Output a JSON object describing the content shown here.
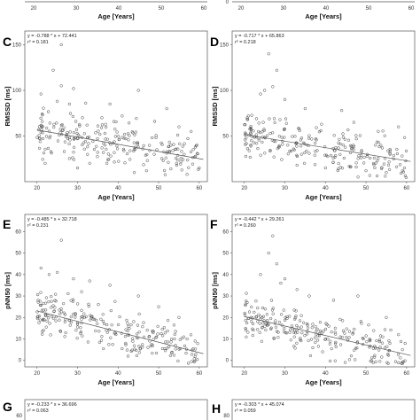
{
  "chart_data": [
    {
      "panel": "",
      "type": "scatter",
      "xlabel": "Age [Years]",
      "x_ticks": [
        20,
        30,
        40,
        50,
        60
      ],
      "xlim": [
        17,
        62
      ],
      "note": "cropped top-left panel (x-axis only visible)"
    },
    {
      "panel": "",
      "type": "scatter",
      "xlabel": "Age [Years]",
      "x_ticks": [
        20,
        30,
        40,
        50,
        60
      ],
      "y_ticks": [
        0
      ],
      "xlim": [
        17,
        62
      ],
      "note": "cropped top-right panel (x-axis only visible)"
    },
    {
      "panel": "C",
      "type": "scatter",
      "xlabel": "Age [Years]",
      "ylabel": "RMSSD [ms]",
      "equation": "y = -0.788 * x + 72.441",
      "r2": "r² = 0.181",
      "slope": -0.788,
      "intercept": 72.441,
      "xlim": [
        17,
        62
      ],
      "ylim": [
        0,
        165
      ],
      "x_ticks": [
        20,
        30,
        40,
        50,
        60
      ],
      "y_ticks": [
        50,
        100,
        150
      ],
      "seed": 11,
      "n": 230,
      "points": [
        [
          26,
          150
        ],
        [
          24,
          122
        ],
        [
          26,
          105
        ],
        [
          29,
          102
        ],
        [
          21,
          96
        ],
        [
          25,
          88
        ],
        [
          28,
          85
        ],
        [
          32,
          86
        ],
        [
          38,
          85
        ],
        [
          45,
          100
        ],
        [
          52,
          80
        ],
        [
          36,
          70
        ],
        [
          41,
          72
        ],
        [
          49,
          66
        ],
        [
          55,
          60
        ],
        [
          58,
          55
        ],
        [
          22,
          20
        ],
        [
          30,
          15
        ],
        [
          44,
          10
        ],
        [
          57,
          8
        ],
        [
          60,
          15
        ],
        [
          33,
          20
        ],
        [
          47,
          12
        ],
        [
          53,
          14
        ]
      ]
    },
    {
      "panel": "D",
      "type": "scatter",
      "xlabel": "Age [Years]",
      "ylabel": "RMSSD [ms]",
      "equation": "y = -0.717 * x + 65.863",
      "r2": "r² = 0.218",
      "slope": -0.717,
      "intercept": 65.863,
      "xlim": [
        17,
        62
      ],
      "ylim": [
        0,
        165
      ],
      "x_ticks": [
        20,
        30,
        40,
        50,
        60
      ],
      "y_ticks": [
        50,
        100,
        150
      ],
      "seed": 23,
      "n": 230,
      "points": [
        [
          26,
          140
        ],
        [
          28,
          122
        ],
        [
          27,
          104
        ],
        [
          25,
          100
        ],
        [
          24,
          96
        ],
        [
          30,
          90
        ],
        [
          35,
          80
        ],
        [
          44,
          78
        ],
        [
          47,
          65
        ],
        [
          21,
          72
        ],
        [
          53,
          55
        ],
        [
          58,
          60
        ],
        [
          40,
          15
        ],
        [
          50,
          12
        ],
        [
          55,
          10
        ],
        [
          59,
          12
        ],
        [
          33,
          18
        ]
      ]
    },
    {
      "panel": "E",
      "type": "scatter",
      "xlabel": "Age [Years]",
      "ylabel": "pNN50 [ms]",
      "equation": "y = -0.485 * x + 32.718",
      "r2": "r² = 0.231",
      "slope": -0.485,
      "intercept": 32.718,
      "xlim": [
        17,
        62
      ],
      "ylim": [
        -3,
        68
      ],
      "x_ticks": [
        20,
        30,
        40,
        50,
        60
      ],
      "y_ticks": [
        0,
        10,
        20,
        30,
        40,
        50,
        60
      ],
      "seed": 37,
      "n": 240,
      "points": [
        [
          26,
          56
        ],
        [
          21,
          43
        ],
        [
          25,
          41
        ],
        [
          23,
          40
        ],
        [
          29,
          38
        ],
        [
          33,
          37
        ],
        [
          38,
          35
        ],
        [
          45,
          30
        ],
        [
          31,
          32
        ],
        [
          50,
          25
        ],
        [
          55,
          20
        ],
        [
          57,
          10
        ],
        [
          59,
          9
        ]
      ]
    },
    {
      "panel": "F",
      "type": "scatter",
      "xlabel": "Age [Years]",
      "ylabel": "pNN50 [ms]",
      "equation": "y = -0.442 * x + 29.261",
      "r2": "r² = 0.260",
      "slope": -0.442,
      "intercept": 29.261,
      "xlim": [
        17,
        62
      ],
      "ylim": [
        -3,
        68
      ],
      "x_ticks": [
        20,
        30,
        40,
        50,
        60
      ],
      "y_ticks": [
        0,
        10,
        20,
        30,
        40,
        50,
        60
      ],
      "seed": 53,
      "n": 240,
      "points": [
        [
          27,
          58
        ],
        [
          26,
          50
        ],
        [
          28,
          45
        ],
        [
          24,
          40
        ],
        [
          30,
          38
        ],
        [
          29,
          36
        ],
        [
          33,
          33
        ],
        [
          36,
          30
        ],
        [
          42,
          28
        ],
        [
          48,
          30
        ],
        [
          55,
          20
        ],
        [
          58,
          12
        ]
      ]
    },
    {
      "panel": "G",
      "type": "scatter",
      "equation": "y = -0.233 * x + 36.696",
      "r2": "r² = 0.063",
      "y_ticks": [
        60
      ],
      "note": "cropped bottom-left panel (header only visible)"
    },
    {
      "panel": "H",
      "type": "scatter",
      "equation": "y = -0.303 * x + 45.074",
      "r2": "r² = 0.059",
      "y_ticks": [
        80
      ],
      "note": "cropped bottom-right panel (header only visible)"
    }
  ]
}
